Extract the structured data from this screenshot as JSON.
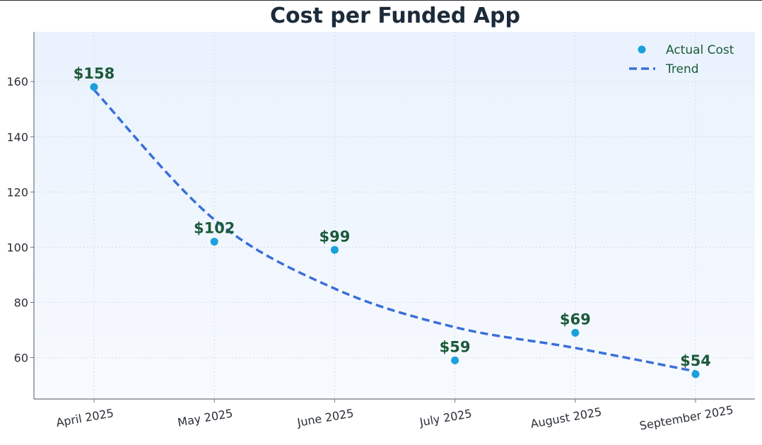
{
  "chart_data": {
    "type": "scatter",
    "title": "Cost per Funded App",
    "xlabel": "",
    "ylabel": "",
    "categories": [
      "April 2025",
      "May 2025",
      "June 2025",
      "July 2025",
      "August 2025",
      "September 2025"
    ],
    "series": [
      {
        "name": "Actual Cost",
        "kind": "scatter",
        "values": [
          158,
          102,
          99,
          59,
          69,
          54
        ],
        "labels": [
          "$158",
          "$102",
          "$99",
          "$59",
          "$69",
          "$54"
        ],
        "color": "#1aa0dc"
      },
      {
        "name": "Trend",
        "kind": "line",
        "style": "dashed",
        "values": [
          157,
          110,
          85,
          71,
          63.5,
          55
        ],
        "color": "#3a6fd8"
      }
    ],
    "ylim": [
      45,
      178
    ],
    "yticks": [
      60,
      80,
      100,
      120,
      140,
      160
    ],
    "grid": true,
    "legend_position": "top-right",
    "colors": {
      "background": "#eef5fd",
      "grid": "#d5dce6",
      "axis": "#6b7480",
      "label": "#1b5a3a",
      "title": "#1c2b3a"
    }
  }
}
